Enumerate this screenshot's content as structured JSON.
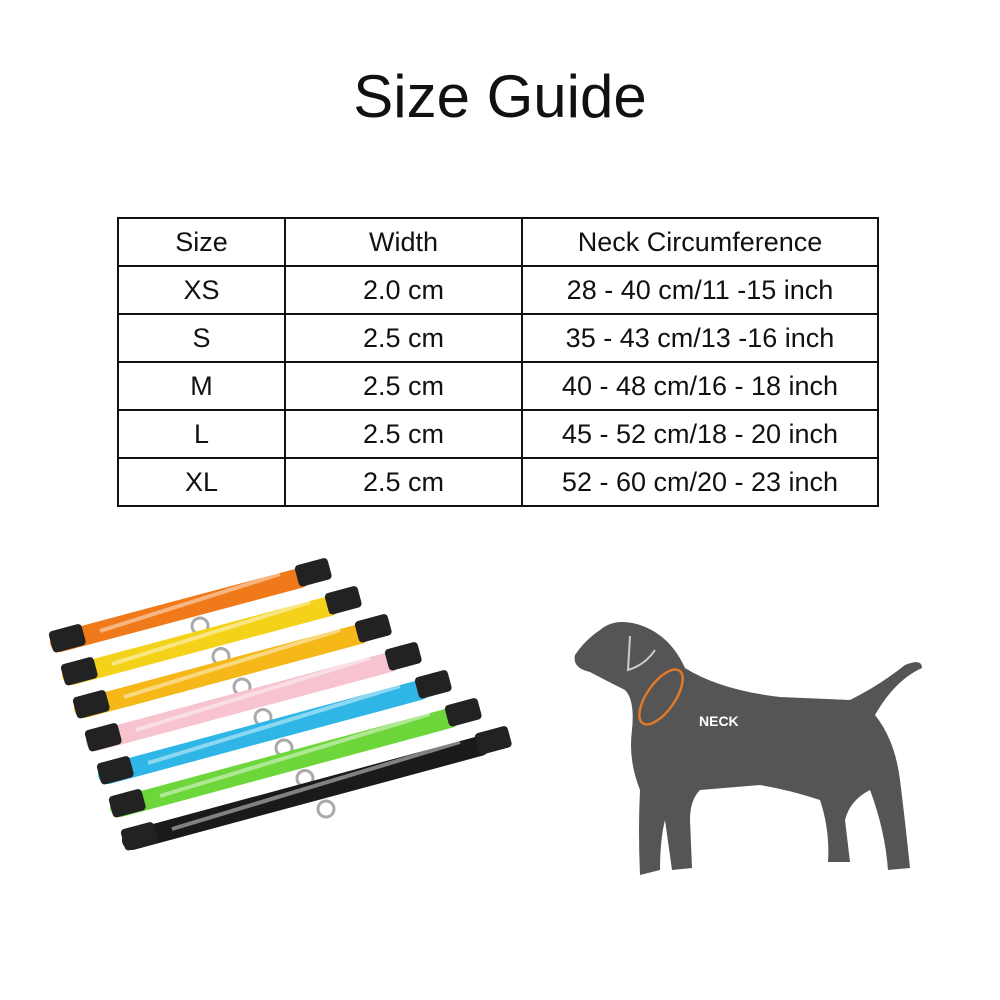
{
  "title": "Size Guide",
  "table": {
    "headers": [
      "Size",
      "Width",
      "Neck Circumference"
    ],
    "rows": [
      [
        "XS",
        "2.0 cm",
        "28 - 40 cm/11 -15 inch"
      ],
      [
        "S",
        "2.5 cm",
        "35 - 43 cm/13 -16 inch"
      ],
      [
        "M",
        "2.5 cm",
        "40 - 48 cm/16 - 18 inch"
      ],
      [
        "L",
        "2.5 cm",
        "45 - 52 cm/18 - 20 inch"
      ],
      [
        "XL",
        "2.5 cm",
        "52 - 60 cm/20 - 23 inch"
      ]
    ]
  },
  "collar_colors": [
    "#f07a1a",
    "#f5d21a",
    "#f6b818",
    "#f6c3cf",
    "#2fb6e6",
    "#6cd63a",
    "#1a1a1a"
  ],
  "dog": {
    "label": "NECK",
    "body_color": "#555555",
    "neck_marker_color": "#e07a2a"
  }
}
